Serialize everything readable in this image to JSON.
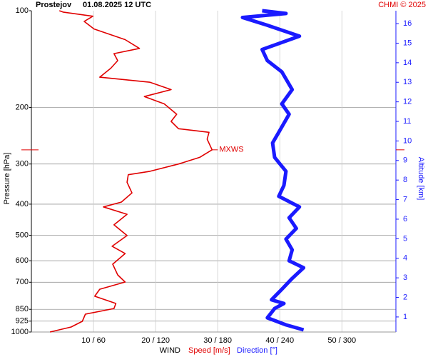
{
  "chart_data": {
    "type": "line",
    "title": "Prostejov",
    "subtitle": "01.08.2025 12 UTC",
    "credit": "CHMI © 2025",
    "x_label": "WIND",
    "y_label": "Pressure [hPa]",
    "y2_label": "Altitude [km]",
    "log_y": true,
    "grid": true,
    "ylim": [
      1000,
      100
    ],
    "yticks": [
      100,
      200,
      300,
      400,
      500,
      600,
      700,
      850,
      925,
      1000
    ],
    "xlim": [
      0,
      58.7
    ],
    "x2lim": [
      0,
      352.2
    ],
    "xticks": [
      {
        "value": 10,
        "label": "10 / 60"
      },
      {
        "value": 20,
        "label": "20 / 120"
      },
      {
        "value": 30,
        "label": "30 / 180"
      },
      {
        "value": 40,
        "label": "40 / 240"
      },
      {
        "value": 50,
        "label": "50 / 300"
      }
    ],
    "y2lim": [
      0.23,
      16.66
    ],
    "y2ticks": [
      1,
      2,
      3,
      4,
      5,
      6,
      7,
      8,
      9,
      10,
      11,
      12,
      13,
      14,
      15,
      16
    ],
    "y2_color": "#1a1aff",
    "annotation": {
      "label": "MXWS",
      "pressure": 271,
      "value": 29.1,
      "color": "#e00000"
    },
    "series": [
      {
        "name": "Speed [m/s]",
        "color": "#e00000",
        "axis": "x",
        "pressure": [
          1000,
          965,
          926,
          880,
          845,
          815,
          774,
          736,
          699,
          664,
          615,
          570,
          541,
          501,
          464,
          430,
          408,
          394,
          369,
          342,
          324,
          316,
          300,
          286,
          271,
          251,
          239,
          233,
          221,
          210,
          195,
          185,
          176,
          167,
          161,
          151,
          143,
          136,
          131,
          123,
          114,
          108,
          104,
          101,
          100
        ],
        "values": [
          3.0,
          6.4,
          8.2,
          8.7,
          13.3,
          13.6,
          10.2,
          11.0,
          15.1,
          13.9,
          13.1,
          15.1,
          13.0,
          15.4,
          13.3,
          15.4,
          11.6,
          14.5,
          16.2,
          15.4,
          15.6,
          19.1,
          23.7,
          27.1,
          29.1,
          28.3,
          28.6,
          23.7,
          22.5,
          23.4,
          21.4,
          18.2,
          22.5,
          19.1,
          11.0,
          12.8,
          13.9,
          13.3,
          17.4,
          15.1,
          10.1,
          8.5,
          9.9,
          5.1,
          4.5
        ]
      },
      {
        "name": "Direction [°]",
        "color": "#1a1aff",
        "axis": "x2",
        "pressure": [
          985,
          950,
          903,
          845,
          815,
          794,
          736,
          681,
          631,
          600,
          555,
          514,
          476,
          441,
          408,
          378,
          350,
          316,
          286,
          258,
          239,
          210,
          195,
          176,
          155,
          143,
          132,
          120,
          111,
          105,
          102,
          100
        ],
        "values": [
          263,
          246,
          228,
          235,
          244,
          232,
          242,
          252,
          263,
          249,
          252,
          246,
          256,
          249,
          259,
          239,
          244,
          246,
          235,
          233,
          239,
          249,
          242,
          252,
          242,
          228,
          223,
          259,
          228,
          204,
          246,
          223
        ]
      }
    ]
  }
}
